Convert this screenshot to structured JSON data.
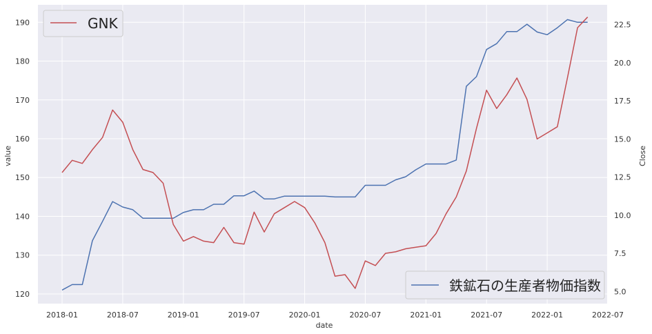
{
  "chart_data": {
    "type": "line",
    "xlabel": "date",
    "ylabel_left": "value",
    "ylabel_right": "Close",
    "x_ticks": [
      "2018-01",
      "2018-07",
      "2019-01",
      "2019-07",
      "2020-01",
      "2020-07",
      "2021-01",
      "2021-07",
      "2022-01",
      "2022-07"
    ],
    "y_left_ticks": [
      120,
      130,
      140,
      150,
      160,
      170,
      180,
      190
    ],
    "y_right_ticks": [
      "5.0",
      "7.5",
      "10.0",
      "12.5",
      "15.0",
      "17.5",
      "20.0",
      "22.5"
    ],
    "y_left_range": [
      117.5,
      194.5
    ],
    "y_right_range": [
      4.2,
      23.8
    ],
    "grid": true,
    "colors": {
      "background": "#EAEAF2",
      "grid": "#FFFFFF",
      "red": "#C44E52",
      "blue": "#4C72B0"
    },
    "legends": [
      {
        "placement": "upper-left",
        "entries": [
          {
            "label": "GNK",
            "color": "#C44E52"
          }
        ]
      },
      {
        "placement": "lower-right",
        "entries": [
          {
            "label": "鉄鉱石の生産者物価指数",
            "color": "#4C72B0"
          }
        ]
      }
    ],
    "series": [
      {
        "name": "鉄鉱石の生産者物価指数",
        "axis": "left",
        "color": "#4C72B0",
        "x": [
          "2018-01",
          "2018-02",
          "2018-03",
          "2018-04",
          "2018-05",
          "2018-06",
          "2018-07",
          "2018-08",
          "2018-09",
          "2018-10",
          "2018-11",
          "2018-12",
          "2019-01",
          "2019-02",
          "2019-03",
          "2019-04",
          "2019-05",
          "2019-06",
          "2019-07",
          "2019-08",
          "2019-09",
          "2019-10",
          "2019-11",
          "2019-12",
          "2020-01",
          "2020-02",
          "2020-03",
          "2020-04",
          "2020-05",
          "2020-06",
          "2020-07",
          "2020-08",
          "2020-09",
          "2020-10",
          "2020-11",
          "2020-12",
          "2021-01",
          "2021-02",
          "2021-03",
          "2021-04",
          "2021-05",
          "2021-06",
          "2021-07",
          "2021-08",
          "2021-09",
          "2021-10",
          "2021-11",
          "2021-12",
          "2022-01",
          "2022-02",
          "2022-03",
          "2022-04",
          "2022-05"
        ],
        "values": [
          121.0,
          122.4,
          122.4,
          133.7,
          138.7,
          143.8,
          142.4,
          141.7,
          139.5,
          139.5,
          139.5,
          139.5,
          141.0,
          141.7,
          141.7,
          143.1,
          143.1,
          145.3,
          145.3,
          146.5,
          144.5,
          144.5,
          145.2,
          145.2,
          145.2,
          145.2,
          145.2,
          145.0,
          145.0,
          145.0,
          148.0,
          148.0,
          148.0,
          149.4,
          150.2,
          152.0,
          153.5,
          153.5,
          153.5,
          154.5,
          173.5,
          176.0,
          183.0,
          184.5,
          187.6,
          187.6,
          189.5,
          187.5,
          186.8,
          188.6,
          190.7,
          190.0,
          190.0
        ]
      },
      {
        "name": "GNK",
        "axis": "right",
        "color": "#C44E52",
        "x": [
          "2018-01",
          "2018-02",
          "2018-03",
          "2018-04",
          "2018-05",
          "2018-06",
          "2018-07",
          "2018-08",
          "2018-09",
          "2018-10",
          "2018-11",
          "2018-12",
          "2019-01",
          "2019-02",
          "2019-03",
          "2019-04",
          "2019-05",
          "2019-06",
          "2019-07",
          "2019-08",
          "2019-09",
          "2019-10",
          "2019-11",
          "2019-12",
          "2020-01",
          "2020-02",
          "2020-03",
          "2020-04",
          "2020-05",
          "2020-06",
          "2020-07",
          "2020-08",
          "2020-09",
          "2020-10",
          "2020-11",
          "2020-12",
          "2021-01",
          "2021-02",
          "2021-03",
          "2021-04",
          "2021-05",
          "2021-06",
          "2021-07",
          "2021-08",
          "2021-09",
          "2021-10",
          "2021-11",
          "2021-12",
          "2022-01",
          "2022-02",
          "2022-03",
          "2022-04",
          "2022-05"
        ],
        "values": [
          12.8,
          13.6,
          13.4,
          14.3,
          15.1,
          16.9,
          16.1,
          14.3,
          13.0,
          12.8,
          12.1,
          9.4,
          8.3,
          8.6,
          8.3,
          8.2,
          9.2,
          8.2,
          8.1,
          10.2,
          8.9,
          10.1,
          10.5,
          10.9,
          10.5,
          9.5,
          8.2,
          6.0,
          6.1,
          5.2,
          7.0,
          6.7,
          7.5,
          7.6,
          7.8,
          7.9,
          8.0,
          8.8,
          10.1,
          11.2,
          12.9,
          15.7,
          18.2,
          17.0,
          17.9,
          19.0,
          17.6,
          15.0,
          15.4,
          15.8,
          19.0,
          22.3,
          23.0
        ]
      }
    ]
  }
}
